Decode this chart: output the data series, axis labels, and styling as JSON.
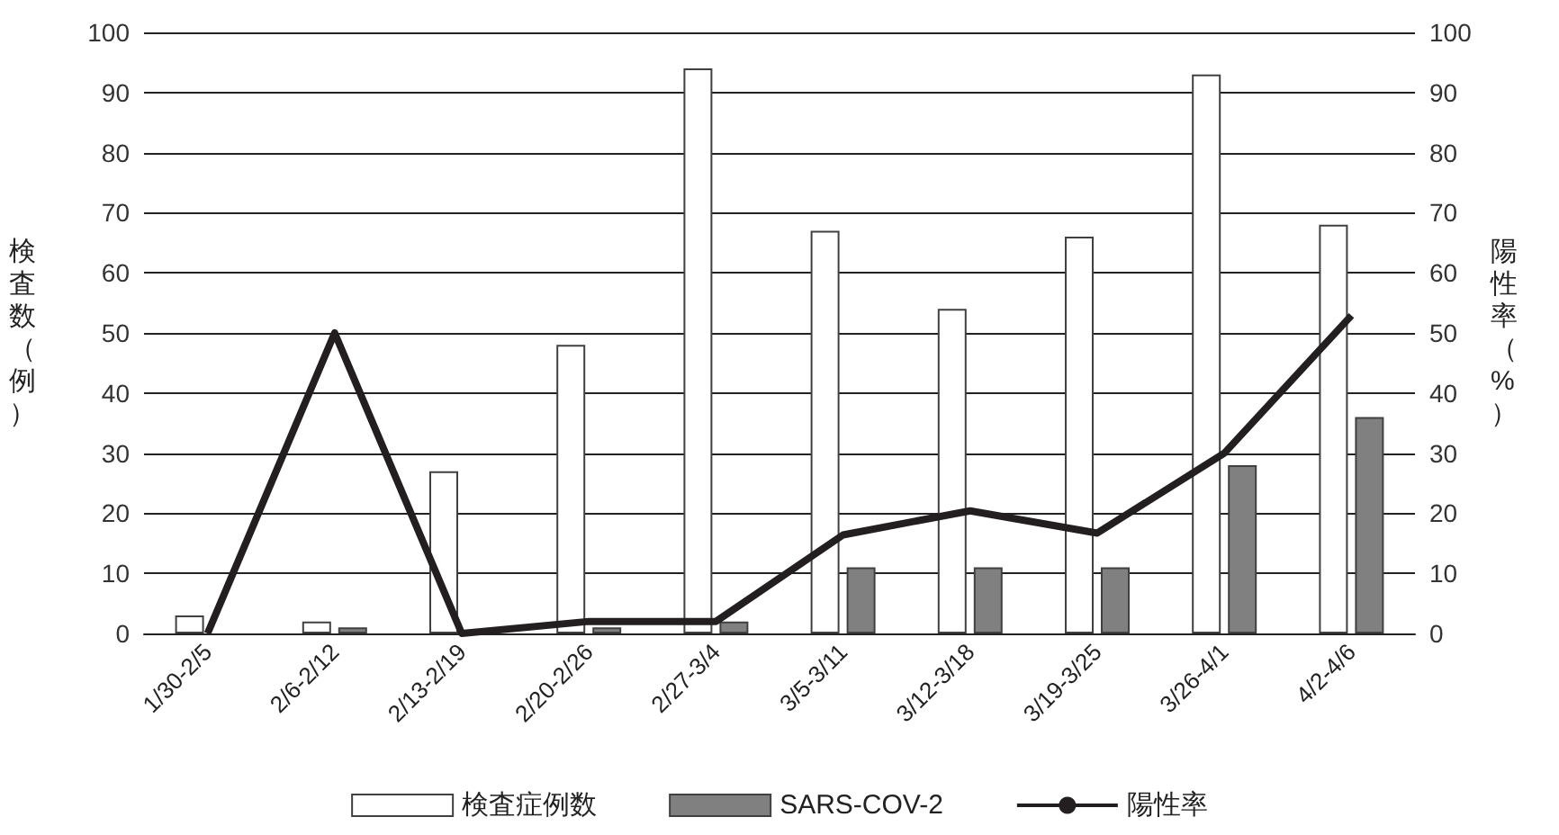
{
  "chart_data": {
    "type": "bar",
    "ylabel": "検査数（例）",
    "y2label": "陽性率（%）",
    "categories": [
      "1/30-2/5",
      "2/6-2/12",
      "2/13-2/19",
      "2/20-2/26",
      "2/27-3/4",
      "3/5-3/11",
      "3/12-3/18",
      "3/19-3/25",
      "3/26-4/1",
      "4/2-4/6"
    ],
    "series": [
      {
        "name": "検査症例数",
        "color": "#ffffff",
        "values": [
          3,
          2,
          27,
          48,
          94,
          67,
          54,
          66,
          93,
          68
        ]
      },
      {
        "name": "SARS-COV-2",
        "color": "#808080",
        "values": [
          0,
          1,
          0,
          1,
          2,
          11,
          11,
          11,
          28,
          36
        ]
      },
      {
        "name": "陽性率",
        "type": "line",
        "axis": "y2",
        "color": "#231f20",
        "values": [
          0,
          50,
          0,
          2,
          2,
          16.4,
          20.4,
          16.7,
          30,
          52.9
        ]
      }
    ],
    "ylim": [
      0,
      100
    ],
    "yticks": [
      0,
      10,
      20,
      30,
      40,
      50,
      60,
      70,
      80,
      90,
      100
    ],
    "y2lim": [
      0,
      100
    ],
    "y2ticks": [
      0,
      10,
      20,
      30,
      40,
      50,
      60,
      70,
      80,
      90,
      100
    ],
    "grid": "y",
    "legend": "bottom",
    "marker": "none",
    "line_style": "solid"
  }
}
